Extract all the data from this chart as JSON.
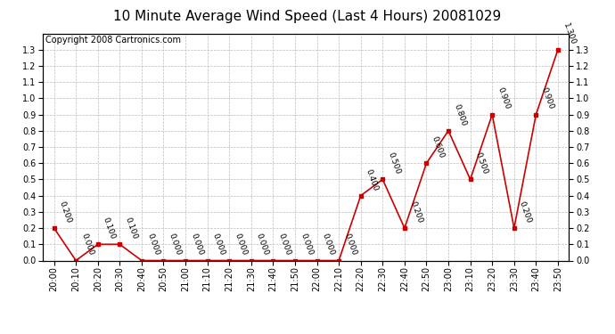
{
  "title": "10 Minute Average Wind Speed (Last 4 Hours) 20081029",
  "copyright": "Copyright 2008 Cartronics.com",
  "times": [
    "20:00",
    "20:10",
    "20:20",
    "20:30",
    "20:40",
    "20:50",
    "21:00",
    "21:10",
    "21:20",
    "21:30",
    "21:40",
    "21:50",
    "22:00",
    "22:10",
    "22:20",
    "22:30",
    "22:40",
    "22:50",
    "23:00",
    "23:10",
    "23:20",
    "23:30",
    "23:40",
    "23:50"
  ],
  "values": [
    0.2,
    0.0,
    0.1,
    0.1,
    0.0,
    0.0,
    0.0,
    0.0,
    0.0,
    0.0,
    0.0,
    0.0,
    0.0,
    0.0,
    0.4,
    0.5,
    0.2,
    0.6,
    0.8,
    0.5,
    0.9,
    0.2,
    0.9,
    1.3
  ],
  "line_color": "#cc0000",
  "marker_color": "#cc0000",
  "bg_color": "#ffffff",
  "plot_bg_color": "#ffffff",
  "grid_color": "#bbbbbb",
  "ylim": [
    0.0,
    1.4
  ],
  "yticks": [
    0.0,
    0.1,
    0.2,
    0.3,
    0.4,
    0.5,
    0.6,
    0.7,
    0.8,
    0.9,
    1.0,
    1.1,
    1.2,
    1.3
  ],
  "title_fontsize": 11,
  "copyright_fontsize": 7,
  "label_fontsize": 6.5,
  "tick_fontsize": 7
}
